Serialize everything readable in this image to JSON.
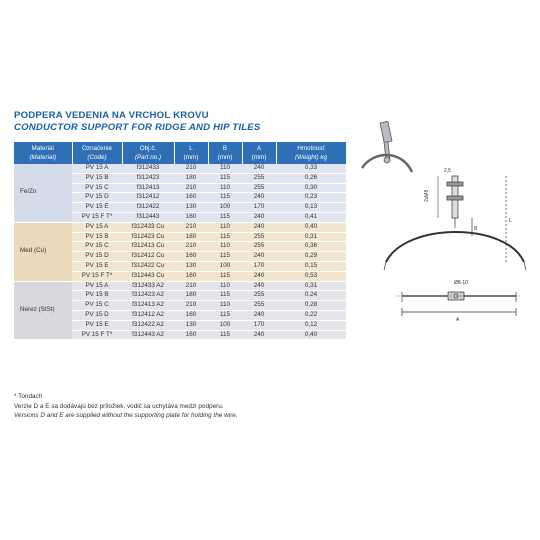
{
  "title_sk": "PODPERA VEDENIA NA VRCHOL KROVU",
  "title_en": "CONDUCTOR SUPPORT FOR RIDGE AND HIP TILES",
  "headers": {
    "material": "Materiál",
    "material_en": "(Material)",
    "code": "Označenie",
    "code_en": "(Code)",
    "part": "Obj.č.",
    "part_en": "(Part no.)",
    "l": "L",
    "l_unit": "(mm)",
    "b": "B",
    "b_unit": "(mm)",
    "a": "A",
    "a_unit": "(mm)",
    "weight": "Hmotnosť",
    "weight_en": "(Weight) kg"
  },
  "groups": [
    {
      "material": "Fe/Zn",
      "rows": [
        {
          "code": "PV 15 A",
          "part": "f312433",
          "l": "210",
          "b": "110",
          "a": "240",
          "w": "0,33"
        },
        {
          "code": "PV 15 B",
          "part": "f312423",
          "l": "180",
          "b": "115",
          "a": "255",
          "w": "0,26"
        },
        {
          "code": "PV 15 C",
          "part": "f312413",
          "l": "210",
          "b": "110",
          "a": "255",
          "w": "0,30"
        },
        {
          "code": "PV 15 D",
          "part": "f312412",
          "l": "160",
          "b": "115",
          "a": "240",
          "w": "0,23"
        },
        {
          "code": "PV 15 E",
          "part": "f312422",
          "l": "130",
          "b": "100",
          "a": "170",
          "w": "0,13"
        },
        {
          "code": "PV 15 F T*",
          "part": "f312443",
          "l": "160",
          "b": "115",
          "a": "240",
          "w": "0,41"
        }
      ]
    },
    {
      "material": "Med (Cu)",
      "rows": [
        {
          "code": "PV 15 A",
          "part": "f312433 Cu",
          "l": "210",
          "b": "110",
          "a": "240",
          "w": "0,40"
        },
        {
          "code": "PV 15 B",
          "part": "f312423 Cu",
          "l": "180",
          "b": "115",
          "a": "255",
          "w": "0,31"
        },
        {
          "code": "PV 15 C",
          "part": "f312413 Cu",
          "l": "210",
          "b": "110",
          "a": "255",
          "w": "0,36"
        },
        {
          "code": "PV 15 D",
          "part": "f312412 Cu",
          "l": "160",
          "b": "115",
          "a": "240",
          "w": "0,29"
        },
        {
          "code": "PV 15 E",
          "part": "f312422 Cu",
          "l": "130",
          "b": "100",
          "a": "170",
          "w": "0,15"
        },
        {
          "code": "PV 15 F T*",
          "part": "f312443 Cu",
          "l": "160",
          "b": "115",
          "a": "240",
          "w": "0,53"
        }
      ]
    },
    {
      "material": "Nerez (StSt)",
      "rows": [
        {
          "code": "PV 15 A",
          "part": "f312433 A2",
          "l": "210",
          "b": "110",
          "a": "240",
          "w": "0,31"
        },
        {
          "code": "PV 15 B",
          "part": "f312423 A2",
          "l": "180",
          "b": "115",
          "a": "255",
          "w": "0,24"
        },
        {
          "code": "PV 15 C",
          "part": "f312413 A2",
          "l": "210",
          "b": "110",
          "a": "255",
          "w": "0,28"
        },
        {
          "code": "PV 15 D",
          "part": "f312412 A2",
          "l": "160",
          "b": "115",
          "a": "240",
          "w": "0,22"
        },
        {
          "code": "PV 15 E",
          "part": "f312422 A2",
          "l": "130",
          "b": "100",
          "a": "170",
          "w": "0,12"
        },
        {
          "code": "PV 15 F T*",
          "part": "f312443 A2",
          "l": "160",
          "b": "115",
          "a": "240",
          "w": "0,40"
        }
      ]
    }
  ],
  "notes": {
    "line1": "* Tondach",
    "line2": "Verzie D a E sa dodávajú bez príložiek, vodič sa uchytáva medzi podperu.",
    "line3": "Versions D and E are supplied without the supporting plate for holding the wire."
  },
  "drawing_labels": {
    "dim_top": "2,5",
    "dim_bolt": "2xM8",
    "dim_b": "B",
    "dim_l": "L",
    "dim_a": "A",
    "dim_wire": "Ø8-10"
  }
}
